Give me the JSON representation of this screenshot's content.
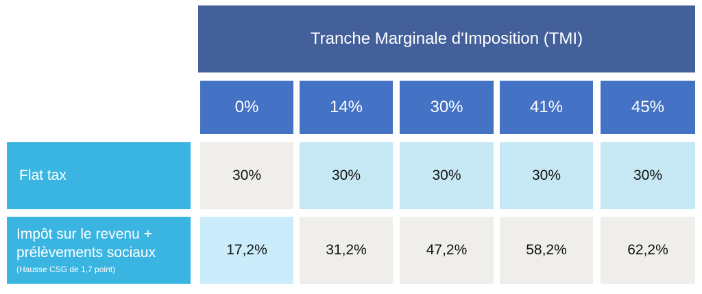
{
  "table": {
    "header": "Tranche Marginale d'Imposition (TMI)",
    "columns": [
      "0%",
      "14%",
      "30%",
      "41%",
      "45%"
    ],
    "rows": [
      {
        "label": "Flat tax",
        "values": [
          "30%",
          "30%",
          "30%",
          "30%",
          "30%"
        ]
      },
      {
        "label_line1": "Impôt sur le revenu +",
        "label_line2": "prélèvements sociaux",
        "note": "(Hausse CSG de 1,7 point)",
        "values": [
          "17,2%",
          "31,2%",
          "47,2%",
          "58,2%",
          "62,2%"
        ]
      }
    ]
  },
  "colors": {
    "header_dark": "#43609a",
    "header_column": "#4472c4",
    "row_header": "#3ab5e2",
    "cell_grey": "#f0eeeb",
    "cell_light_blue": "#c6e8f4"
  }
}
